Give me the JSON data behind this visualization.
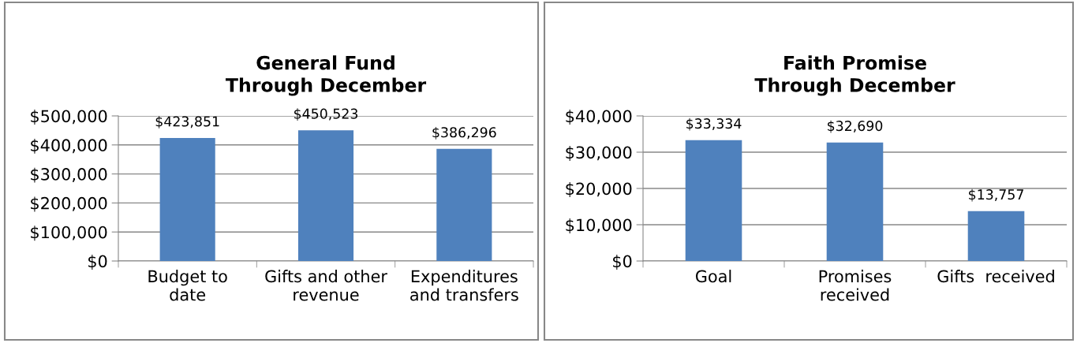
{
  "chart_data": [
    {
      "type": "bar",
      "title": "General Fund\nThrough December",
      "categories": [
        "Budget to\ndate",
        "Gifts and other\nrevenue",
        "Expenditures\nand transfers"
      ],
      "values": [
        423851,
        450523,
        386296
      ],
      "color": "#4f81bd",
      "value_labels": [
        "$423,851",
        "$450,523",
        "$386,296"
      ],
      "ylim": [
        0,
        500000
      ],
      "yticks": [
        {
          "value": 0,
          "label": "$0"
        },
        {
          "value": 100000,
          "label": "$100,000"
        },
        {
          "value": 200000,
          "label": "$200,000"
        },
        {
          "value": 300000,
          "label": "$300,000"
        },
        {
          "value": 400000,
          "label": "$400,000"
        },
        {
          "value": 500000,
          "label": "$500,000"
        }
      ],
      "grid": "y",
      "legend": false
    },
    {
      "type": "bar",
      "title": "Faith Promise\nThrough December",
      "categories": [
        "Goal",
        "Promises\nreceived",
        "Gifts  received"
      ],
      "values": [
        33334,
        32690,
        13757
      ],
      "color": "#4f81bd",
      "value_labels": [
        "$33,334",
        "$32,690",
        "$13,757"
      ],
      "ylim": [
        0,
        40000
      ],
      "yticks": [
        {
          "value": 0,
          "label": "$0"
        },
        {
          "value": 10000,
          "label": "$10,000"
        },
        {
          "value": 20000,
          "label": "$20,000"
        },
        {
          "value": 30000,
          "label": "$30,000"
        },
        {
          "value": 40000,
          "label": "$40,000"
        }
      ],
      "grid": "y",
      "legend": false
    }
  ]
}
